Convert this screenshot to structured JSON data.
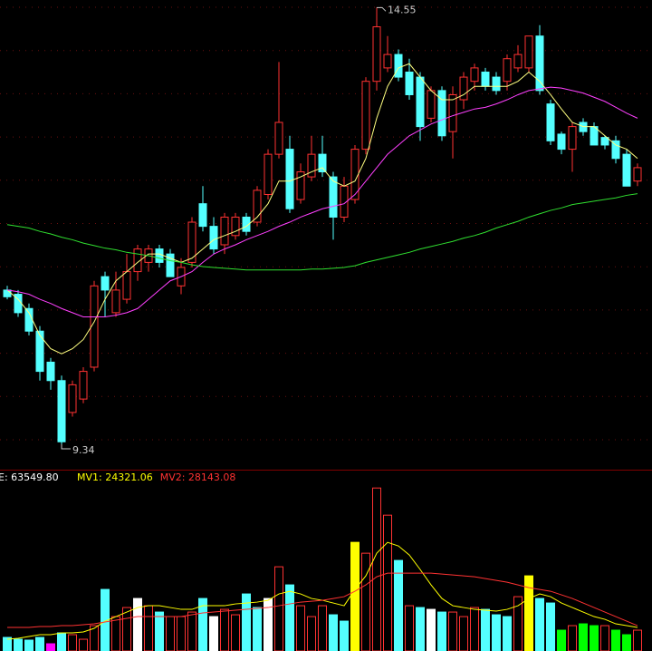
{
  "chart_data": [
    {
      "type": "candlestick",
      "up_color": "#ff3232",
      "down_color": "#54ffff",
      "ylim": [
        9.07,
        14.64
      ],
      "high_label": "14.55",
      "low_label": "9.34",
      "ohlc": [
        [
          11.18,
          11.23,
          11.07,
          11.1
        ],
        [
          11.13,
          11.18,
          10.86,
          10.91
        ],
        [
          10.96,
          11.02,
          10.64,
          10.69
        ],
        [
          10.69,
          10.75,
          10.1,
          10.21
        ],
        [
          10.32,
          10.37,
          9.99,
          10.1
        ],
        [
          10.1,
          10.16,
          9.34,
          9.37
        ],
        [
          9.72,
          10.1,
          9.67,
          10.05
        ],
        [
          9.88,
          10.26,
          9.83,
          10.21
        ],
        [
          10.26,
          11.29,
          10.21,
          11.23
        ],
        [
          11.34,
          11.4,
          10.86,
          11.18
        ],
        [
          10.91,
          11.4,
          10.86,
          11.18
        ],
        [
          11.07,
          11.61,
          11.02,
          11.4
        ],
        [
          11.4,
          11.72,
          11.29,
          11.67
        ],
        [
          11.51,
          11.72,
          11.4,
          11.67
        ],
        [
          11.67,
          11.72,
          11.45,
          11.51
        ],
        [
          11.61,
          11.67,
          11.34,
          11.34
        ],
        [
          11.23,
          11.56,
          11.13,
          11.45
        ],
        [
          11.51,
          12.05,
          11.45,
          11.99
        ],
        [
          12.21,
          12.42,
          11.88,
          11.94
        ],
        [
          11.94,
          12.05,
          11.61,
          11.67
        ],
        [
          11.72,
          12.1,
          11.61,
          12.05
        ],
        [
          11.83,
          12.1,
          11.78,
          12.05
        ],
        [
          12.05,
          12.1,
          11.83,
          11.88
        ],
        [
          11.99,
          12.42,
          11.94,
          12.37
        ],
        [
          12.32,
          12.86,
          12.26,
          12.8
        ],
        [
          12.8,
          13.9,
          12.75,
          13.18
        ],
        [
          12.86,
          13.02,
          12.1,
          12.15
        ],
        [
          12.26,
          12.69,
          12.21,
          12.59
        ],
        [
          12.53,
          13.02,
          12.48,
          12.8
        ],
        [
          12.8,
          13.02,
          12.53,
          12.59
        ],
        [
          12.53,
          12.59,
          11.78,
          12.05
        ],
        [
          12.05,
          12.53,
          11.99,
          12.42
        ],
        [
          12.26,
          12.91,
          12.21,
          12.86
        ],
        [
          12.86,
          13.72,
          12.8,
          13.67
        ],
        [
          13.67,
          14.55,
          13.56,
          14.32
        ],
        [
          13.83,
          14.21,
          13.78,
          13.99
        ],
        [
          13.99,
          14.05,
          13.67,
          13.72
        ],
        [
          13.78,
          13.94,
          13.45,
          13.51
        ],
        [
          13.72,
          13.78,
          12.96,
          13.13
        ],
        [
          13.23,
          13.61,
          13.18,
          13.56
        ],
        [
          13.56,
          13.61,
          12.96,
          13.02
        ],
        [
          13.07,
          13.61,
          12.75,
          13.51
        ],
        [
          13.45,
          13.78,
          13.34,
          13.72
        ],
        [
          13.67,
          13.88,
          13.56,
          13.83
        ],
        [
          13.78,
          13.83,
          13.56,
          13.61
        ],
        [
          13.72,
          13.78,
          13.51,
          13.56
        ],
        [
          13.67,
          13.99,
          13.56,
          13.94
        ],
        [
          13.83,
          14.1,
          13.78,
          13.99
        ],
        [
          13.83,
          14.21,
          13.78,
          14.21
        ],
        [
          14.21,
          14.34,
          13.51,
          13.56
        ],
        [
          13.4,
          13.45,
          12.91,
          12.96
        ],
        [
          13.04,
          13.07,
          12.8,
          12.86
        ],
        [
          12.86,
          13.18,
          12.59,
          13.13
        ],
        [
          13.18,
          13.23,
          13.02,
          13.07
        ],
        [
          13.13,
          13.18,
          12.91,
          12.91
        ],
        [
          13.0,
          13.02,
          12.86,
          12.91
        ],
        [
          12.96,
          13.02,
          12.69,
          12.75
        ],
        [
          12.8,
          12.86,
          12.42,
          12.42
        ],
        [
          12.48,
          12.69,
          12.42,
          12.64
        ]
      ],
      "lines": [
        {
          "color": "#ffff80",
          "values": [
            11.18,
            11.07,
            10.91,
            10.64,
            10.48,
            10.42,
            10.48,
            10.59,
            10.8,
            11.07,
            11.29,
            11.4,
            11.51,
            11.61,
            11.61,
            11.56,
            11.51,
            11.56,
            11.67,
            11.78,
            11.83,
            11.88,
            11.94,
            12.05,
            12.21,
            12.48,
            12.48,
            12.53,
            12.59,
            12.64,
            12.48,
            12.42,
            12.48,
            12.75,
            13.23,
            13.61,
            13.83,
            13.88,
            13.72,
            13.56,
            13.45,
            13.45,
            13.51,
            13.61,
            13.61,
            13.61,
            13.61,
            13.67,
            13.78,
            13.67,
            13.51,
            13.34,
            13.18,
            13.13,
            13.13,
            13.02,
            12.91,
            12.86,
            12.75
          ]
        },
        {
          "color": "#ff40ff",
          "values": [
            11.18,
            11.16,
            11.13,
            11.07,
            11.02,
            10.96,
            10.91,
            10.86,
            10.86,
            10.86,
            10.88,
            10.91,
            10.96,
            11.07,
            11.18,
            11.29,
            11.34,
            11.4,
            11.51,
            11.61,
            11.67,
            11.72,
            11.78,
            11.83,
            11.88,
            11.94,
            11.99,
            12.05,
            12.1,
            12.15,
            12.18,
            12.21,
            12.32,
            12.48,
            12.64,
            12.8,
            12.91,
            13.02,
            13.09,
            13.16,
            13.21,
            13.26,
            13.3,
            13.34,
            13.36,
            13.4,
            13.45,
            13.51,
            13.56,
            13.58,
            13.6,
            13.59,
            13.56,
            13.53,
            13.48,
            13.43,
            13.36,
            13.29,
            13.23
          ]
        },
        {
          "color": "#30e030",
          "values": [
            11.96,
            11.94,
            11.92,
            11.88,
            11.85,
            11.81,
            11.78,
            11.74,
            11.71,
            11.68,
            11.66,
            11.63,
            11.61,
            11.59,
            11.56,
            11.53,
            11.51,
            11.48,
            11.46,
            11.45,
            11.44,
            11.43,
            11.42,
            11.42,
            11.42,
            11.42,
            11.42,
            11.42,
            11.43,
            11.43,
            11.44,
            11.45,
            11.47,
            11.51,
            11.54,
            11.57,
            11.6,
            11.63,
            11.67,
            11.7,
            11.73,
            11.76,
            11.8,
            11.83,
            11.87,
            11.92,
            11.96,
            12.0,
            12.05,
            12.09,
            12.13,
            12.16,
            12.2,
            12.22,
            12.24,
            12.26,
            12.28,
            12.31,
            12.33
          ]
        }
      ]
    },
    {
      "type": "bar",
      "label": "E: 63549.80",
      "label_color": "#ffffff",
      "ylim": [
        0,
        410000
      ],
      "hollow": "#ff3232",
      "values": [
        33750,
        29250,
        27000,
        33750,
        18000,
        45000,
        40500,
        29250,
        63000,
        153000,
        85500,
        108000,
        130500,
        112500,
        96750,
        85500,
        85500,
        96750,
        130500,
        85500,
        103500,
        90000,
        141750,
        108000,
        130500,
        209250,
        164250,
        112500,
        85500,
        112500,
        90000,
        74250,
        270000,
        243000,
        405000,
        337500,
        225000,
        112500,
        108000,
        103500,
        96750,
        96750,
        85500,
        108000,
        103500,
        90000,
        85500,
        135000,
        186750,
        130500,
        119250,
        51750,
        63000,
        67500,
        63000,
        63000,
        51750,
        40500,
        51750
      ],
      "colors": [
        "#54ffff",
        "#54ffff",
        "#54ffff",
        "#54ffff",
        "#ff00ff",
        "#54ffff",
        "#ff3232",
        "#ff3232",
        "#ff3232",
        "#54ffff",
        "#ff3232",
        "#ff3232",
        "#ffffff",
        "#ff3232",
        "#54ffff",
        "#ff3232",
        "#ff3232",
        "#ff3232",
        "#54ffff",
        "#ffffff",
        "#ff3232",
        "#ff3232",
        "#54ffff",
        "#54ffff",
        "#ffffff",
        "#ff3232",
        "#54ffff",
        "#ff3232",
        "#ff3232",
        "#ff3232",
        "#54ffff",
        "#54ffff",
        "#ffff00",
        "#ff3232",
        "#ff3232",
        "#ff3232",
        "#54ffff",
        "#ff3232",
        "#54ffff",
        "#ffffff",
        "#54ffff",
        "#ff3232",
        "#ff3232",
        "#ff3232",
        "#54ffff",
        "#54ffff",
        "#54ffff",
        "#ff3232",
        "#ffff00",
        "#54ffff",
        "#54ffff",
        "#00ff00",
        "#ff3232",
        "#00ff00",
        "#00ff00",
        "#ff3232",
        "#00ff00",
        "#00ff00",
        "#ff3232"
      ],
      "lines": [
        {
          "name": "MV1: 24321.06",
          "color": "#ffff00",
          "values": [
            29250,
            31500,
            36000,
            40500,
            40500,
            45000,
            45000,
            47250,
            56250,
            74250,
            85500,
            96750,
            108000,
            112500,
            112500,
            108000,
            103500,
            103500,
            112500,
            112500,
            112500,
            117000,
            119250,
            121500,
            126000,
            141750,
            148500,
            141750,
            130500,
            126000,
            119250,
            112500,
            153000,
            186750,
            243000,
            270000,
            261000,
            238500,
            202500,
            164250,
            130500,
            112500,
            108000,
            103500,
            101250,
            99000,
            103500,
            112500,
            130500,
            141750,
            135000,
            119250,
            108000,
            96750,
            85500,
            78750,
            67500,
            63000,
            58500
          ]
        },
        {
          "name": "MV2: 28143.08",
          "color": "#ff3232",
          "values": [
            58500,
            58500,
            58500,
            60750,
            60750,
            63000,
            63000,
            65250,
            67500,
            72000,
            76500,
            81000,
            85500,
            85500,
            85500,
            85500,
            85500,
            90000,
            94500,
            96750,
            99000,
            101250,
            103500,
            105750,
            108000,
            112500,
            117000,
            121500,
            123750,
            126000,
            130500,
            135000,
            148500,
            164250,
            184500,
            193500,
            193500,
            193500,
            193500,
            193500,
            191250,
            189000,
            186750,
            184500,
            180000,
            175500,
            171000,
            164250,
            157500,
            153000,
            148500,
            139500,
            130500,
            119250,
            108000,
            96750,
            85500,
            74250,
            63000
          ]
        }
      ]
    }
  ]
}
